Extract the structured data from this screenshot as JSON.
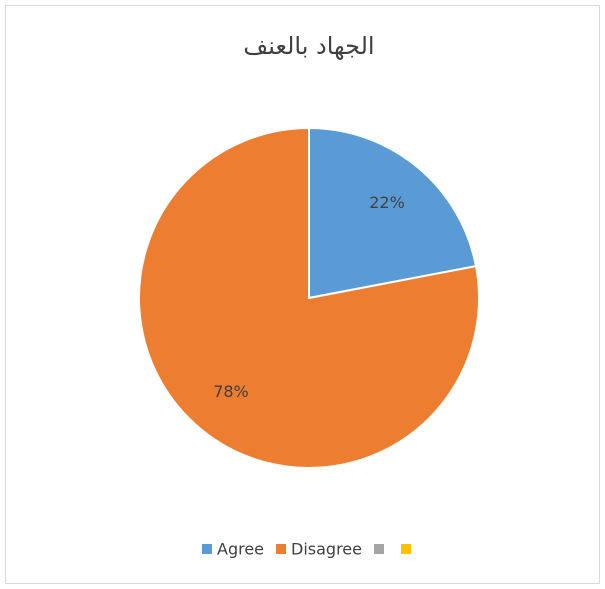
{
  "chart_data": {
    "type": "pie",
    "title": "الجهاد بالعنف",
    "categories": [
      "Agree",
      "Disagree",
      null,
      null
    ],
    "values": [
      22,
      78,
      0,
      0
    ],
    "value_labels": [
      "22%",
      "78%",
      null,
      null
    ],
    "colors": [
      "#5b9bd5",
      "#ed7d31",
      "#a5a5a5",
      "#ffc000"
    ],
    "legend": "bottom"
  }
}
